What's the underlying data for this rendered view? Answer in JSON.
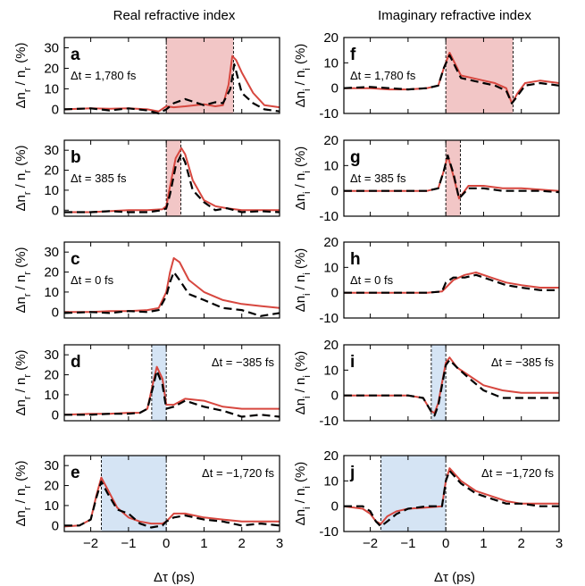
{
  "columns": [
    {
      "title": "Real refractive index",
      "ylabel": "Δn_r / n_r (%)"
    },
    {
      "title": "Imaginary refractive index",
      "ylabel": "Δn_i / n_i (%)"
    }
  ],
  "xlabel": "Δτ (ps)",
  "colors": {
    "measured": "#d7473f",
    "simulated": "#000000",
    "pink": "#f2c6c6",
    "blue": "#d5e4f4"
  },
  "chart_data": [
    {
      "type": "line",
      "panel": "a",
      "annotation": "Δt = 1,780 fs",
      "ylim": [
        -2,
        35
      ],
      "yticks": [
        0,
        10,
        20,
        30
      ],
      "xlim": [
        -2.7,
        3
      ],
      "xticks": [
        -2,
        -1,
        0,
        1,
        2,
        3
      ],
      "shade": {
        "color": "pink",
        "from": 0,
        "to": 1.78
      },
      "series": [
        {
          "style": "red",
          "x": [
            -2.7,
            -2,
            -1.5,
            -1,
            -0.5,
            -0.2,
            0,
            0.2,
            0.5,
            1,
            1.3,
            1.5,
            1.65,
            1.75,
            1.85,
            2,
            2.3,
            2.6,
            3
          ],
          "y": [
            0,
            0.5,
            0.3,
            0.5,
            0,
            -1,
            1.5,
            1,
            1.5,
            2.5,
            1.5,
            2,
            12,
            26,
            24,
            18,
            8,
            2,
            1
          ]
        },
        {
          "style": "dash",
          "x": [
            -2.7,
            -2,
            -1.5,
            -1,
            -0.5,
            -0.2,
            0,
            0.2,
            0.5,
            1,
            1.3,
            1.5,
            1.7,
            1.8,
            1.9,
            2,
            2.3,
            2.6,
            3
          ],
          "y": [
            0,
            0.5,
            -0.5,
            0.5,
            -0.5,
            -2,
            0,
            3,
            5,
            2,
            3.5,
            3,
            10,
            22,
            15,
            8,
            3,
            0,
            -1
          ]
        }
      ]
    },
    {
      "type": "line",
      "panel": "b",
      "annotation": "Δt = 385 fs",
      "ylim": [
        -3,
        35
      ],
      "yticks": [
        0,
        10,
        20,
        30
      ],
      "xlim": [
        -2.7,
        3
      ],
      "xticks": [
        -2,
        -1,
        0,
        1,
        2,
        3
      ],
      "shade": {
        "color": "pink",
        "from": 0,
        "to": 0.385
      },
      "series": [
        {
          "style": "red",
          "x": [
            -2.7,
            -2,
            -1.5,
            -1,
            -0.5,
            -0.1,
            0,
            0.1,
            0.25,
            0.4,
            0.5,
            0.7,
            1,
            1.3,
            1.6,
            2,
            2.5,
            3
          ],
          "y": [
            -1,
            -1,
            -0.5,
            0,
            0,
            0.5,
            2,
            12,
            26,
            31,
            28,
            15,
            5,
            2,
            1,
            0,
            0,
            0
          ]
        },
        {
          "style": "dash",
          "x": [
            -2.7,
            -2,
            -1.5,
            -1,
            -0.5,
            -0.1,
            0,
            0.1,
            0.25,
            0.4,
            0.5,
            0.7,
            1,
            1.3,
            1.6,
            2,
            2.5,
            3
          ],
          "y": [
            -1,
            -1,
            -0.5,
            -1,
            -1,
            0,
            1,
            8,
            22,
            28,
            24,
            10,
            4,
            0,
            1,
            -1,
            -0.5,
            -1
          ]
        }
      ]
    },
    {
      "type": "line",
      "panel": "c",
      "annotation": "Δt = 0 fs",
      "ylim": [
        -3,
        35
      ],
      "yticks": [
        0,
        10,
        20,
        30
      ],
      "xlim": [
        -2.7,
        3
      ],
      "xticks": [
        -2,
        -1,
        0,
        1,
        2,
        3
      ],
      "series": [
        {
          "style": "red",
          "x": [
            -2.7,
            -2,
            -1.5,
            -1,
            -0.5,
            -0.2,
            0,
            0.1,
            0.2,
            0.35,
            0.6,
            1,
            1.5,
            2,
            2.5,
            3
          ],
          "y": [
            0,
            0,
            0.5,
            0.5,
            1,
            2,
            10,
            20,
            27,
            25,
            16,
            10,
            6,
            4,
            3,
            2
          ]
        },
        {
          "style": "dash",
          "x": [
            -2.7,
            -2,
            -1.5,
            -1,
            -0.5,
            -0.2,
            0,
            0.1,
            0.2,
            0.35,
            0.6,
            1,
            1.5,
            2,
            2.5,
            3
          ],
          "y": [
            -0.5,
            0,
            -0.5,
            0.5,
            0,
            1,
            8,
            15,
            20,
            16,
            9,
            6,
            2,
            1,
            -2,
            -0.5
          ]
        }
      ]
    },
    {
      "type": "line",
      "panel": "d",
      "annotation": "Δt = −385 fs",
      "ylim": [
        -3,
        35
      ],
      "yticks": [
        0,
        10,
        20,
        30
      ],
      "xlim": [
        -2.7,
        3
      ],
      "xticks": [
        -2,
        -1,
        0,
        1,
        2,
        3
      ],
      "shade": {
        "color": "blue",
        "from": -0.385,
        "to": 0
      },
      "series": [
        {
          "style": "red",
          "x": [
            -2.7,
            -2,
            -1.5,
            -1,
            -0.7,
            -0.5,
            -0.35,
            -0.25,
            -0.1,
            0,
            0.2,
            0.5,
            1,
            1.5,
            2,
            2.5,
            3
          ],
          "y": [
            0,
            0.5,
            0.5,
            1,
            1,
            3,
            16,
            24,
            18,
            5,
            5,
            8,
            7,
            4,
            3,
            3,
            3
          ]
        },
        {
          "style": "dash",
          "x": [
            -2.7,
            -2,
            -1.5,
            -1,
            -0.7,
            -0.5,
            -0.35,
            -0.25,
            -0.1,
            0,
            0.2,
            0.5,
            1,
            1.5,
            2,
            2.5,
            3
          ],
          "y": [
            0,
            0,
            0.5,
            0.5,
            1,
            3,
            14,
            22,
            15,
            3,
            4,
            7,
            4,
            2,
            -1,
            0,
            -1
          ]
        }
      ]
    },
    {
      "type": "line",
      "panel": "e",
      "annotation": "Δt = −1,720 fs",
      "ylim": [
        -3,
        35
      ],
      "yticks": [
        0,
        10,
        20,
        30
      ],
      "xlim": [
        -2.7,
        3
      ],
      "xticks": [
        -2,
        -1,
        0,
        1,
        2,
        3
      ],
      "shade": {
        "color": "blue",
        "from": -1.72,
        "to": 0
      },
      "series": [
        {
          "style": "red",
          "x": [
            -2.7,
            -2.3,
            -2,
            -1.85,
            -1.72,
            -1.55,
            -1.3,
            -1,
            -0.7,
            -0.4,
            -0.1,
            0,
            0.2,
            0.5,
            1,
            1.5,
            2,
            2.5,
            3
          ],
          "y": [
            -0.5,
            0,
            3,
            15,
            24,
            18,
            9,
            4,
            2,
            1,
            1,
            2,
            6,
            6,
            4,
            3,
            2,
            2,
            2
          ]
        },
        {
          "style": "dash",
          "x": [
            -2.7,
            -2.3,
            -2,
            -1.85,
            -1.72,
            -1.55,
            -1.3,
            -1,
            -0.7,
            -0.4,
            -0.1,
            0,
            0.2,
            0.5,
            1,
            1.5,
            2,
            2.5,
            3
          ],
          "y": [
            0,
            0,
            3,
            14,
            22,
            16,
            8,
            6,
            1,
            -1,
            0,
            2,
            4,
            5,
            3,
            2,
            0,
            1,
            0
          ]
        }
      ]
    },
    {
      "type": "line",
      "panel": "f",
      "annotation": "Δt = 1,780 fs",
      "ylim": [
        -10,
        20
      ],
      "yticks": [
        -10,
        0,
        10,
        20
      ],
      "xlim": [
        -2.7,
        3
      ],
      "xticks": [
        -2,
        -1,
        0,
        1,
        2,
        3
      ],
      "shade": {
        "color": "pink",
        "from": 0,
        "to": 1.78
      },
      "series": [
        {
          "style": "red",
          "x": [
            -2.7,
            -2,
            -1.5,
            -1,
            -0.5,
            -0.2,
            -0.05,
            0.1,
            0.2,
            0.4,
            0.7,
            1,
            1.3,
            1.6,
            1.75,
            1.9,
            2.1,
            2.5,
            3
          ],
          "y": [
            0,
            0,
            -0.5,
            -0.5,
            0,
            1,
            8,
            14,
            11,
            5,
            4,
            3,
            2,
            0,
            -6,
            -2,
            2,
            3,
            2
          ]
        },
        {
          "style": "dash",
          "x": [
            -2.7,
            -2,
            -1.5,
            -1,
            -0.5,
            -0.2,
            -0.05,
            0.1,
            0.2,
            0.4,
            0.7,
            1,
            1.3,
            1.6,
            1.75,
            1.9,
            2.1,
            2.5,
            3
          ],
          "y": [
            0,
            0.5,
            0,
            -0.5,
            0,
            1,
            8,
            13,
            10,
            4,
            3,
            2,
            1,
            -1,
            -6,
            -3,
            1,
            2,
            1
          ]
        }
      ]
    },
    {
      "type": "line",
      "panel": "g",
      "annotation": "Δt = 385 fs",
      "ylim": [
        -10,
        20
      ],
      "yticks": [
        -10,
        0,
        10,
        20
      ],
      "xlim": [
        -2.7,
        3
      ],
      "xticks": [
        -2,
        -1,
        0,
        1,
        2,
        3
      ],
      "shade": {
        "color": "pink",
        "from": 0,
        "to": 0.385
      },
      "series": [
        {
          "style": "red",
          "x": [
            -2.7,
            -2,
            -1.5,
            -1,
            -0.5,
            -0.2,
            -0.05,
            0.05,
            0.2,
            0.35,
            0.6,
            1,
            1.5,
            2,
            2.5,
            3
          ],
          "y": [
            0,
            0,
            0,
            0,
            0,
            1,
            8,
            14,
            6,
            -3,
            2,
            2,
            1,
            1,
            0.5,
            0
          ]
        },
        {
          "style": "dash",
          "x": [
            -2.7,
            -2,
            -1.5,
            -1,
            -0.5,
            -0.2,
            -0.05,
            0.05,
            0.2,
            0.35,
            0.6,
            1,
            1.5,
            2,
            2.5,
            3
          ],
          "y": [
            0,
            0,
            0,
            0,
            0,
            1,
            8,
            14,
            7,
            -3,
            1,
            1,
            0,
            0,
            0,
            -0.5
          ]
        }
      ]
    },
    {
      "type": "line",
      "panel": "h",
      "annotation": "Δt = 0 fs",
      "ylim": [
        -10,
        20
      ],
      "yticks": [
        -10,
        0,
        10,
        20
      ],
      "xlim": [
        -2.7,
        3
      ],
      "xticks": [
        -2,
        -1,
        0,
        1,
        2,
        3
      ],
      "series": [
        {
          "style": "red",
          "x": [
            -2.7,
            -2,
            -1.5,
            -1,
            -0.5,
            -0.1,
            0,
            0.2,
            0.5,
            0.8,
            1.2,
            1.6,
            2,
            2.5,
            3
          ],
          "y": [
            0,
            0,
            0,
            0,
            0,
            0.5,
            2,
            5,
            7,
            8,
            6,
            4,
            3,
            2,
            2
          ]
        },
        {
          "style": "dash",
          "x": [
            -2.7,
            -2,
            -1.5,
            -1,
            -0.5,
            -0.1,
            0,
            0.2,
            0.5,
            0.8,
            1.2,
            1.6,
            2,
            2.5,
            3
          ],
          "y": [
            0,
            0,
            0,
            0,
            0,
            0.5,
            4,
            6,
            6,
            7,
            5,
            3,
            2,
            1,
            1
          ]
        }
      ]
    },
    {
      "type": "line",
      "panel": "i",
      "annotation": "Δt = −385 fs",
      "ylim": [
        -10,
        20
      ],
      "yticks": [
        -10,
        0,
        10,
        20
      ],
      "xlim": [
        -2.7,
        3
      ],
      "xticks": [
        -2,
        -1,
        0,
        1,
        2,
        3
      ],
      "shade": {
        "color": "blue",
        "from": -0.385,
        "to": 0
      },
      "series": [
        {
          "style": "red",
          "x": [
            -2.7,
            -2,
            -1.5,
            -1,
            -0.6,
            -0.4,
            -0.3,
            -0.2,
            -0.1,
            0,
            0.1,
            0.3,
            0.6,
            1,
            1.5,
            2,
            2.5,
            3
          ],
          "y": [
            0,
            0,
            0,
            0,
            -1,
            -6,
            -7,
            -3,
            5,
            13,
            15,
            11,
            8,
            4,
            2,
            1,
            1,
            1
          ]
        },
        {
          "style": "dash",
          "x": [
            -2.7,
            -2,
            -1.5,
            -1,
            -0.6,
            -0.4,
            -0.3,
            -0.2,
            -0.1,
            0,
            0.1,
            0.3,
            0.6,
            1,
            1.5,
            2,
            2.5,
            3
          ],
          "y": [
            0,
            0,
            0,
            0,
            -1,
            -6,
            -8,
            -4,
            4,
            12,
            14,
            11,
            7,
            2,
            -1,
            -1,
            -1,
            -1
          ]
        }
      ]
    },
    {
      "type": "line",
      "panel": "j",
      "annotation": "Δt = −1,720 fs",
      "ylim": [
        -10,
        20
      ],
      "yticks": [
        -10,
        0,
        10,
        20
      ],
      "xlim": [
        -2.7,
        3
      ],
      "xticks": [
        -2,
        -1,
        0,
        1,
        2,
        3
      ],
      "shade": {
        "color": "blue",
        "from": -1.72,
        "to": 0
      },
      "series": [
        {
          "style": "red",
          "x": [
            -2.7,
            -2.2,
            -2,
            -1.85,
            -1.72,
            -1.55,
            -1.3,
            -1,
            -0.5,
            -0.1,
            0,
            0.1,
            0.4,
            0.8,
            1.2,
            1.6,
            2,
            2.5,
            3
          ],
          "y": [
            0,
            -1,
            -3,
            -6,
            -7,
            -4,
            -2,
            -1,
            -0.5,
            0,
            10,
            15,
            10,
            6,
            4,
            2,
            1,
            1,
            1
          ]
        },
        {
          "style": "dash",
          "x": [
            -2.7,
            -2.2,
            -2,
            -1.85,
            -1.72,
            -1.55,
            -1.3,
            -1,
            -0.5,
            -0.1,
            0,
            0.1,
            0.4,
            0.8,
            1.2,
            1.6,
            2,
            2.5,
            3
          ],
          "y": [
            0,
            0,
            -2,
            -6,
            -8,
            -6,
            -3,
            -1,
            0,
            0,
            10,
            14,
            9,
            5,
            3,
            1,
            1,
            0,
            0
          ]
        }
      ]
    }
  ]
}
